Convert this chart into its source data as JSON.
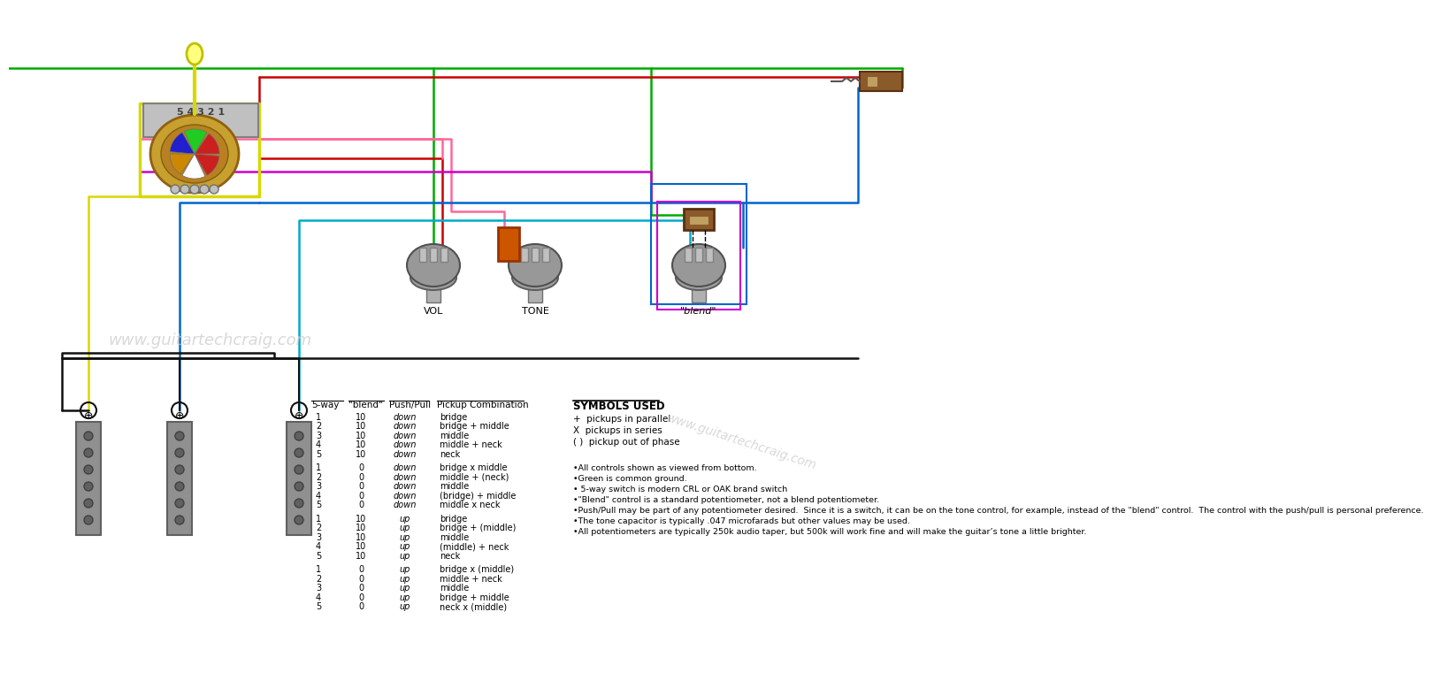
{
  "bg": "#ffffff",
  "green": "#00aa00",
  "red": "#cc0000",
  "yellow": "#d8d800",
  "blue": "#0066cc",
  "magenta": "#cc00cc",
  "pink": "#ff6699",
  "black": "#111111",
  "cyan": "#00aacc",
  "watermark_color": "#cccccc",
  "table_rows": [
    [
      "1",
      "10",
      "down",
      "bridge"
    ],
    [
      "2",
      "10",
      "down",
      "bridge + middle"
    ],
    [
      "3",
      "10",
      "down",
      "middle"
    ],
    [
      "4",
      "10",
      "down",
      "middle + neck"
    ],
    [
      "5",
      "10",
      "down",
      "neck"
    ],
    [
      "1",
      "0",
      "down",
      "bridge x middle"
    ],
    [
      "2",
      "0",
      "down",
      "middle + (neck)"
    ],
    [
      "3",
      "0",
      "down",
      "middle"
    ],
    [
      "4",
      "0",
      "down",
      "(bridge) + middle"
    ],
    [
      "5",
      "0",
      "down",
      "middle x neck"
    ],
    [
      "1",
      "10",
      "up",
      "bridge"
    ],
    [
      "2",
      "10",
      "up",
      "bridge + (middle)"
    ],
    [
      "3",
      "10",
      "up",
      "middle"
    ],
    [
      "4",
      "10",
      "up",
      "(middle) + neck"
    ],
    [
      "5",
      "10",
      "up",
      "neck"
    ],
    [
      "1",
      "0",
      "up",
      "bridge x (middle)"
    ],
    [
      "2",
      "0",
      "up",
      "middle + neck"
    ],
    [
      "3",
      "0",
      "up",
      "middle"
    ],
    [
      "4",
      "0",
      "up",
      "bridge + middle"
    ],
    [
      "5",
      "0",
      "up",
      "neck x (middle)"
    ]
  ],
  "symbols_title": "SYMBOLS USED",
  "symbols_list": [
    "+  pickups in parallel",
    "X  pickups in series",
    "( )  pickup out of phase"
  ],
  "notes_list": [
    "•All controls shown as viewed from bottom.",
    "•Green is common ground.",
    "• 5-way switch is modern CRL or OAK brand switch",
    "•\"Blend\" control is a standard potentiometer, not a blend potentiometer.",
    "•Push/Pull may be part of any potentiometer desired.  Since it is a switch, it can be on the tone control, for example, instead of the \"blend\" control.  The control with the push/pull is personal preference.",
    "•The tone capacitor is typically .047 microfarads but other values may be used.",
    "•All potentiometers are typically 250k audio taper, but 500k will work fine and will make the guitar’s tone a little brighter."
  ],
  "wm1_text": "www.guitartechcraig.com",
  "wm2_text": "www.guitartechcraig.com"
}
